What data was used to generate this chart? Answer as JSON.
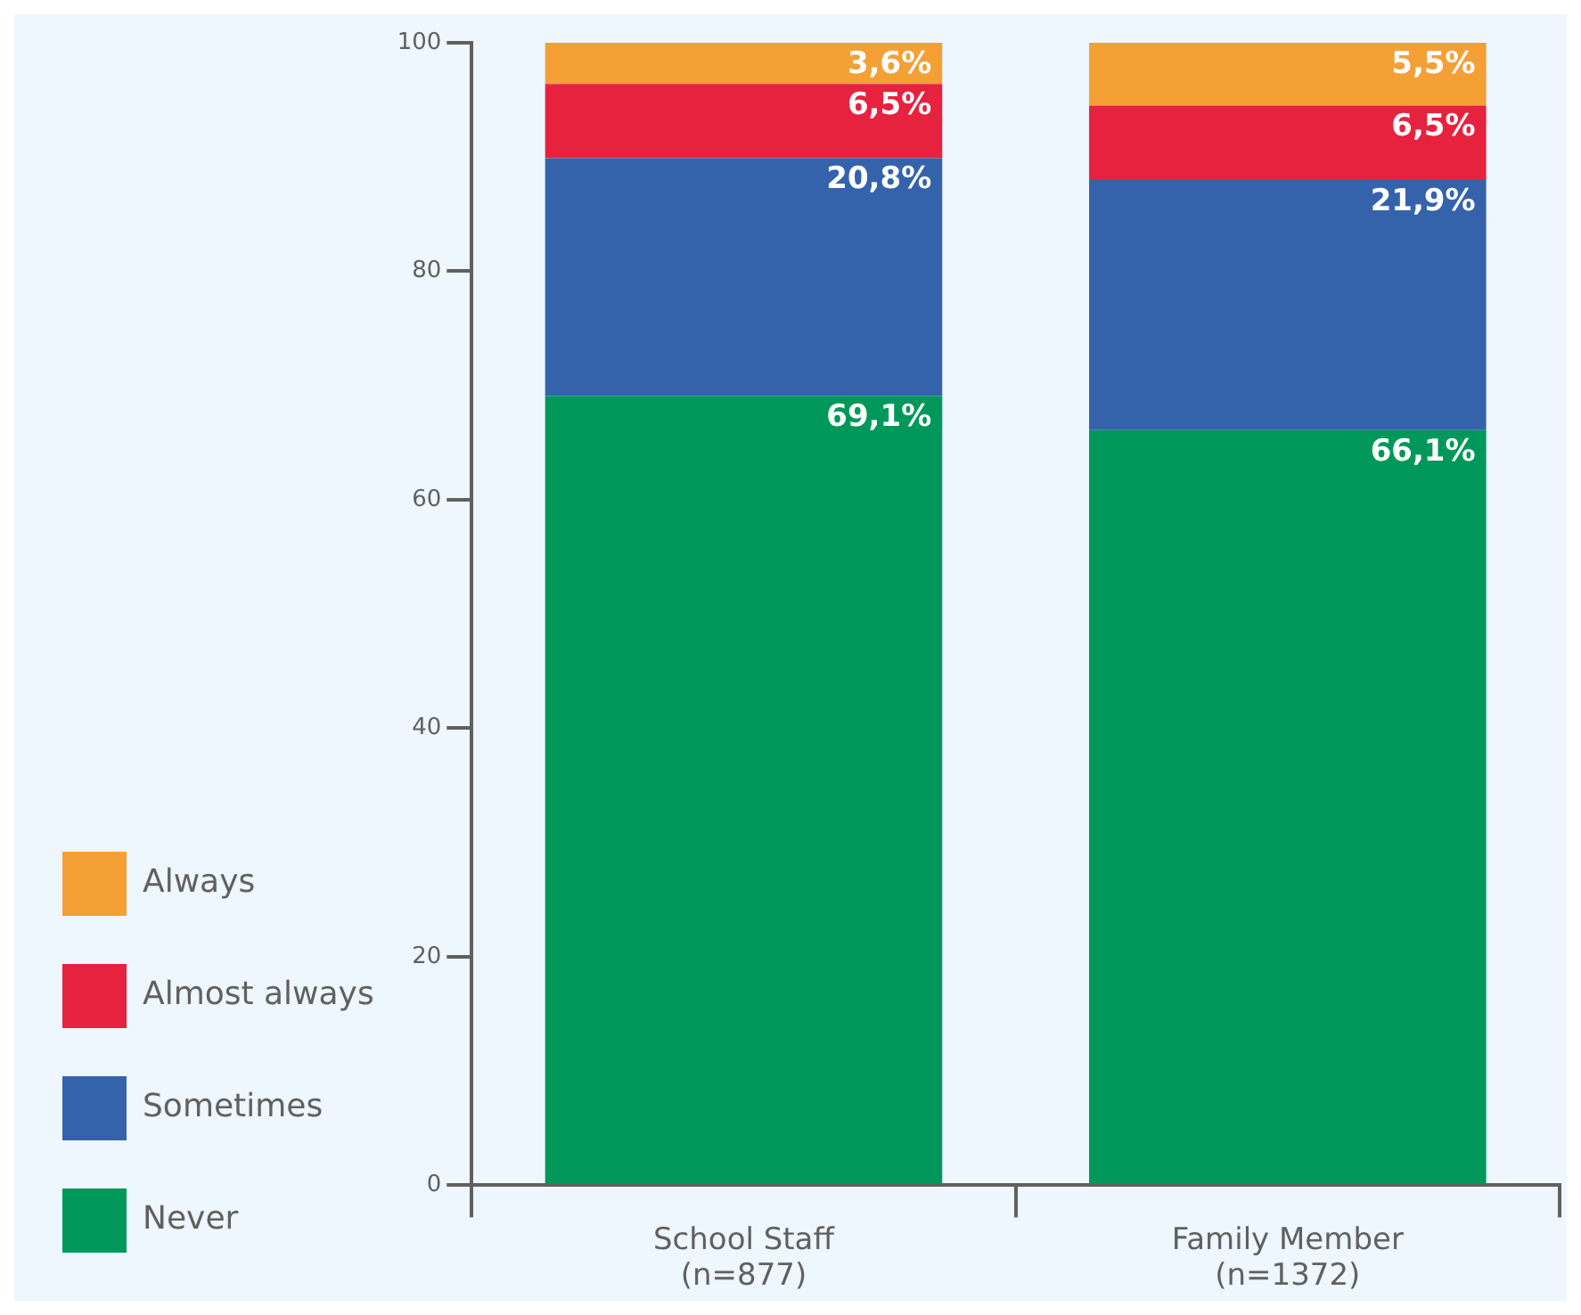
{
  "chart_data": {
    "type": "bar",
    "stacked": true,
    "categories": [
      "School Staff (n=877)",
      "Family Member (n=1372)"
    ],
    "series": [
      {
        "name": "Never",
        "color": "#00985a",
        "values": [
          69.1,
          66.1
        ],
        "value_labels": [
          "69,1%",
          "66,1%"
        ]
      },
      {
        "name": "Sometimes",
        "color": "#3463ac",
        "values": [
          20.8,
          21.9
        ],
        "value_labels": [
          "20,8%",
          "21,9%"
        ]
      },
      {
        "name": "Almost always",
        "color": "#e7223e",
        "values": [
          6.5,
          6.5
        ],
        "value_labels": [
          "6,5%",
          "6,5%"
        ]
      },
      {
        "name": "Always",
        "color": "#f4a035",
        "values": [
          3.6,
          5.5
        ],
        "value_labels": [
          "3,6%",
          "5,5%"
        ]
      }
    ],
    "ylim": [
      0,
      100
    ],
    "yticks": [
      0,
      20,
      40,
      60,
      80,
      100
    ],
    "grid": false,
    "legend": "bottom left"
  }
}
